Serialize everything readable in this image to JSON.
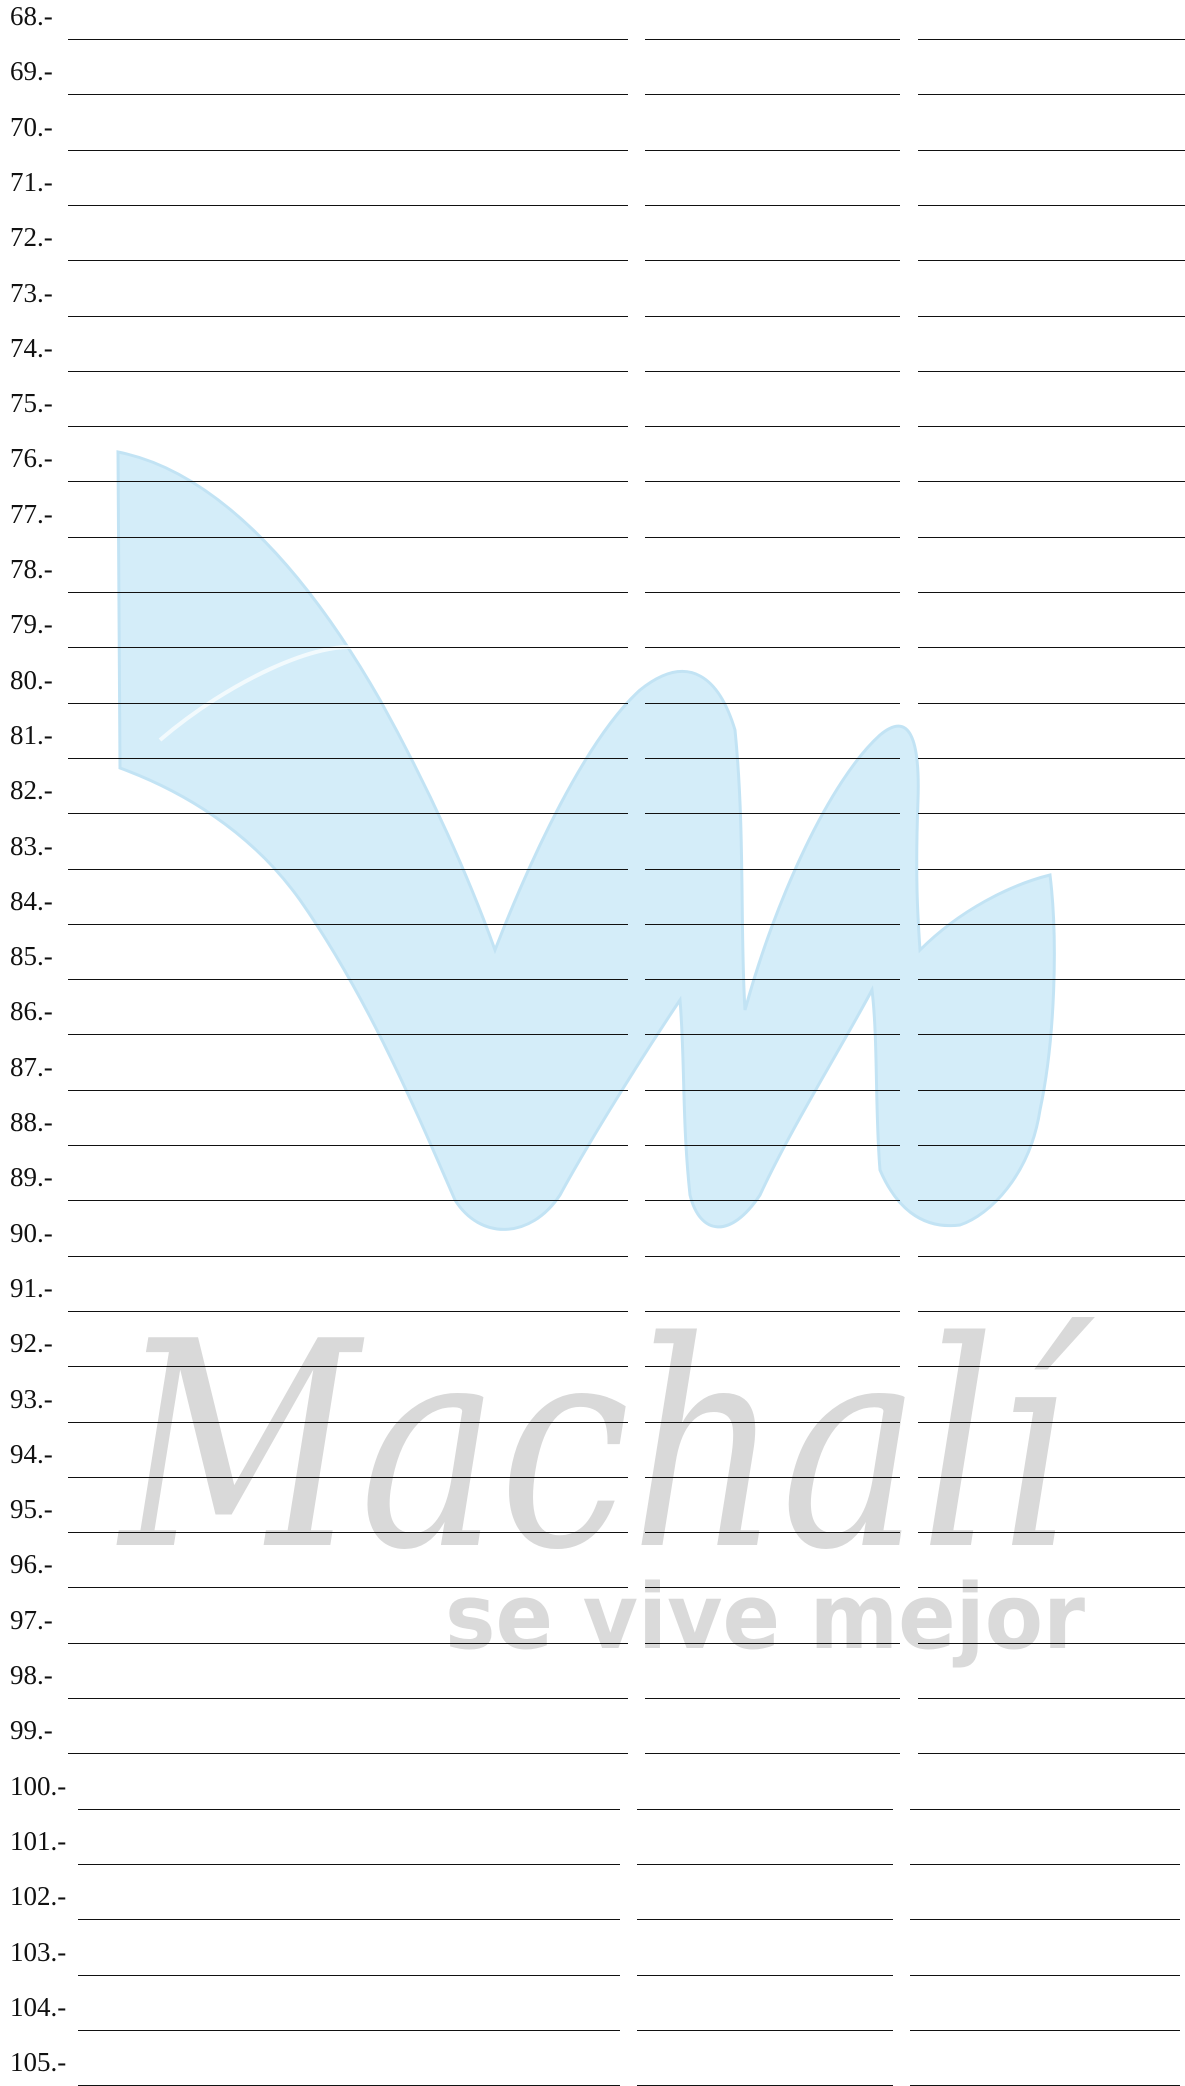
{
  "form": {
    "rows": [
      {
        "label": "68.-"
      },
      {
        "label": "69.-"
      },
      {
        "label": "70.-"
      },
      {
        "label": "71.-"
      },
      {
        "label": "72.-"
      },
      {
        "label": "73.-"
      },
      {
        "label": "74.-"
      },
      {
        "label": "75.-"
      },
      {
        "label": "76.-"
      },
      {
        "label": "77.-"
      },
      {
        "label": "78.-"
      },
      {
        "label": "79.-"
      },
      {
        "label": "80.-"
      },
      {
        "label": "81.-"
      },
      {
        "label": "82.-"
      },
      {
        "label": "83.-"
      },
      {
        "label": "84.-"
      },
      {
        "label": "85.-"
      },
      {
        "label": "86.-"
      },
      {
        "label": "87.-"
      },
      {
        "label": "88.-"
      },
      {
        "label": "89.-"
      },
      {
        "label": "90.-"
      },
      {
        "label": "91.-"
      },
      {
        "label": "92.-"
      },
      {
        "label": "93.-"
      },
      {
        "label": "94.-"
      },
      {
        "label": "95.-"
      },
      {
        "label": "96.-"
      },
      {
        "label": "97.-"
      },
      {
        "label": "98.-"
      },
      {
        "label": "99.-"
      },
      {
        "label": "100.-"
      },
      {
        "label": "101.-"
      },
      {
        "label": "102.-"
      },
      {
        "label": "103.-"
      },
      {
        "label": "104.-"
      },
      {
        "label": "105.-"
      }
    ]
  },
  "watermark": {
    "brand_text": "Machalí",
    "tagline_text": "se vive mejor",
    "logo_color": "#cdeaf8",
    "text_color": "#d9d9d9"
  }
}
